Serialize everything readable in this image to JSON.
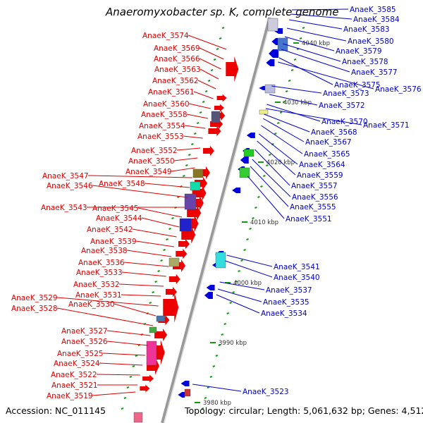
{
  "title": "Anaeromyxobacter sp. K, complete genome",
  "accession": "Accession: NC_011145",
  "summary": "Topology: circular; Length: 5,061,632 bp; Genes: 4,512",
  "colors": {
    "left_label": "#dd0000",
    "right_label": "#0000cc",
    "forward_gene": "#ee0000",
    "reverse_gene": "#0000dd",
    "backbone": "#999999",
    "tick": "#119911"
  },
  "kbp_markers": [
    "4040 kbp",
    "4030 kbp",
    "4020 kbp",
    "4010 kbp",
    "4000 kbp",
    "3990 kbp",
    "3980 kbp"
  ],
  "left_labels": [
    "AnaeK_3574",
    "AnaeK_3569",
    "AnaeK_3566",
    "AnaeK_3563",
    "AnaeK_3562",
    "AnaeK_3561",
    "AnaeK_3560",
    "AnaeK_3558",
    "AnaeK_3554",
    "AnaeK_3553",
    "AnaeK_3552",
    "AnaeK_3550",
    "AnaeK_3549",
    "AnaeK_3547",
    "AnaeK_3548",
    "AnaeK_3546",
    "AnaeK_3543",
    "AnaeK_3545",
    "AnaeK_3544",
    "AnaeK_3542",
    "AnaeK_3539",
    "AnaeK_3538",
    "AnaeK_3536",
    "AnaeK_3533",
    "AnaeK_3532",
    "AnaeK_3531",
    "AnaeK_3529",
    "AnaeK_3530",
    "AnaeK_3528",
    "AnaeK_3527",
    "AnaeK_3526",
    "AnaeK_3525",
    "AnaeK_3524",
    "AnaeK_3522",
    "AnaeK_3521",
    "AnaeK_3519"
  ],
  "right_labels": [
    "AnaeK_3585",
    "AnaeK_3584",
    "AnaeK_3583",
    "AnaeK_3580",
    "AnaeK_3579",
    "AnaeK_3578",
    "AnaeK_3577",
    "AnaeK_3575",
    "AnaeK_3576",
    "AnaeK_3573",
    "AnaeK_3572",
    "AnaeK_3570",
    "AnaeK_3571",
    "AnaeK_3568",
    "AnaeK_3567",
    "AnaeK_3565",
    "AnaeK_3564",
    "AnaeK_3559",
    "AnaeK_3557",
    "AnaeK_3556",
    "AnaeK_3555",
    "AnaeK_3551",
    "AnaeK_3541",
    "AnaeK_3540",
    "AnaeK_3537",
    "AnaeK_3535",
    "AnaeK_3534",
    "AnaeK_3523"
  ]
}
